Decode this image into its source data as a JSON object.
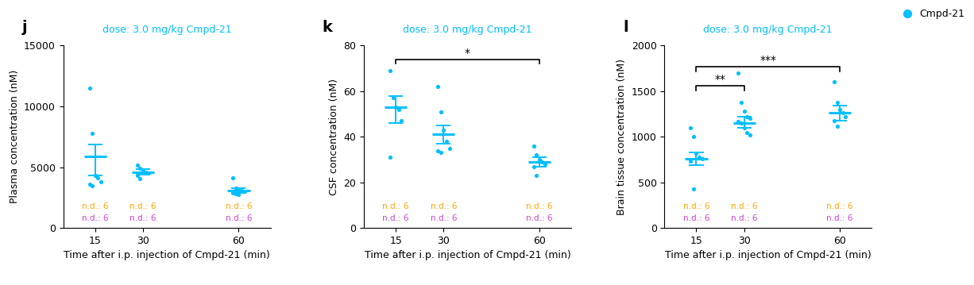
{
  "chart_data": [
    {
      "type": "scatter",
      "panel_label": "j",
      "subtitle": "dose: 3.0 mg/kg Cmpd-21",
      "xlabel": "Time after i.p. injection of Cmpd-21 (min)",
      "ylabel": "Plasma concentration (nM)",
      "x": [
        15,
        30,
        60
      ],
      "xlim": [
        5,
        70
      ],
      "xticks": [
        15,
        30,
        60
      ],
      "ylim": [
        0,
        15000
      ],
      "yticks": [
        0,
        5000,
        10000,
        15000
      ],
      "series": [
        {
          "color": "#00BFFF",
          "values": [
            [
              11500,
              7800,
              4300,
              4100,
              3800,
              3600,
              3500
            ],
            [
              5200,
              4900,
              4700,
              4600,
              4500,
              4300,
              4050
            ],
            [
              4100,
              3300,
              3150,
              3100,
              3000,
              2900,
              2800,
              2780
            ]
          ],
          "means": [
            5900,
            4580,
            3100
          ],
          "error_low": [
            4350,
            4380,
            2900
          ],
          "error_high": [
            6900,
            4850,
            3300
          ]
        }
      ],
      "nd_labels": [
        {
          "text": "n.d.: 6",
          "color": "#FFA500"
        },
        {
          "text": "n.d.: 6",
          "color": "#CC44CC"
        }
      ]
    },
    {
      "type": "scatter",
      "panel_label": "k",
      "subtitle": "dose: 3.0 mg/kg Cmpd-21",
      "xlabel": "Time after i.p. injection of Cmpd-21 (min)",
      "ylabel": "CSF concentration (nM)",
      "x": [
        15,
        30,
        60
      ],
      "xlim": [
        5,
        70
      ],
      "xticks": [
        15,
        30,
        60
      ],
      "ylim": [
        0,
        80
      ],
      "yticks": [
        0,
        20,
        40,
        60,
        80
      ],
      "series": [
        {
          "color": "#00BFFF",
          "values": [
            [
              69,
              57,
              53,
              52,
              47,
              31
            ],
            [
              62,
              51,
              43,
              38,
              35,
              34,
              33
            ],
            [
              36,
              32,
              30,
              29,
              28,
              27,
              23
            ]
          ],
          "means": [
            53,
            41,
            29
          ],
          "error_low": [
            46,
            37,
            27
          ],
          "error_high": [
            58,
            45,
            31
          ]
        }
      ],
      "significance": [
        {
          "x1": 15,
          "x2": 60,
          "y": 74,
          "label": "*"
        }
      ],
      "nd_labels": [
        {
          "text": "n.d.: 6",
          "color": "#FFA500"
        },
        {
          "text": "n.d.: 6",
          "color": "#CC44CC"
        }
      ]
    },
    {
      "type": "scatter",
      "panel_label": "l",
      "subtitle": "dose: 3.0 mg/kg Cmpd-21",
      "xlabel": "Time after i.p. injection of Cmpd-21 (min)",
      "ylabel": "Brain tissue concentration (nM)",
      "x": [
        15,
        30,
        60
      ],
      "xlim": [
        5,
        70
      ],
      "xticks": [
        15,
        30,
        60
      ],
      "ylim": [
        0,
        2000
      ],
      "yticks": [
        0,
        500,
        1000,
        1500,
        2000
      ],
      "series": [
        {
          "name": "Cmpd-21",
          "color": "#00BFFF",
          "values": [
            [
              1100,
              1000,
              820,
              780,
              760,
              730,
              430
            ],
            [
              1700,
              1380,
              1280,
              1220,
              1200,
              1170,
              1150,
              1100,
              1050,
              1020
            ],
            [
              1600,
              1380,
              1300,
              1260,
              1220,
              1180,
              1120
            ]
          ],
          "means": [
            760,
            1155,
            1260
          ],
          "error_low": [
            690,
            1100,
            1180
          ],
          "error_high": [
            830,
            1220,
            1340
          ]
        }
      ],
      "significance": [
        {
          "x1": 15,
          "x2": 30,
          "y": 1560,
          "label": "**"
        },
        {
          "x1": 15,
          "x2": 60,
          "y": 1770,
          "label": "***"
        }
      ],
      "nd_labels": [
        {
          "text": "n.d.: 6",
          "color": "#FFA500"
        },
        {
          "text": "n.d.: 6",
          "color": "#CC44CC"
        }
      ],
      "legend": "upper right"
    }
  ]
}
